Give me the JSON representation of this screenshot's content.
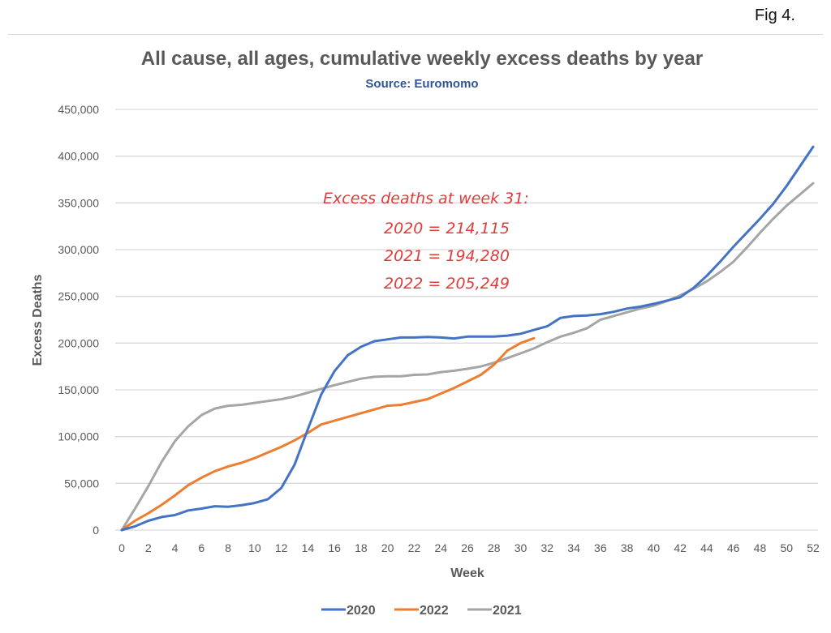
{
  "figure": {
    "label": "Fig 4."
  },
  "chart_data": {
    "type": "line",
    "title": "All cause, all ages, cumulative weekly excess deaths by year",
    "subtitle": "Source: Euromomo",
    "xlabel": "Week",
    "ylabel": "Excess Deaths",
    "xlim": [
      0,
      52
    ],
    "ylim": [
      0,
      450000
    ],
    "x_ticks": [
      0,
      2,
      4,
      6,
      8,
      10,
      12,
      14,
      16,
      18,
      20,
      22,
      24,
      26,
      28,
      30,
      32,
      34,
      36,
      38,
      40,
      42,
      44,
      46,
      48,
      50,
      52
    ],
    "y_ticks": [
      0,
      50000,
      100000,
      150000,
      200000,
      250000,
      300000,
      350000,
      400000,
      450000
    ],
    "y_tick_labels": [
      "0",
      "50,000",
      "100,000",
      "150,000",
      "200,000",
      "250,000",
      "300,000",
      "350,000",
      "400,000",
      "450,000"
    ],
    "grid": "horizontal",
    "legend_position": "bottom",
    "series": [
      {
        "name": "2020",
        "color": "#4472c4",
        "x": [
          0,
          1,
          2,
          3,
          4,
          5,
          6,
          7,
          8,
          9,
          10,
          11,
          12,
          13,
          14,
          15,
          16,
          17,
          18,
          19,
          20,
          21,
          22,
          23,
          24,
          25,
          26,
          27,
          28,
          29,
          30,
          31,
          32,
          33,
          34,
          35,
          36,
          37,
          38,
          39,
          40,
          41,
          42,
          43,
          44,
          45,
          46,
          47,
          48,
          49,
          50,
          51,
          52
        ],
        "values": [
          0,
          4000,
          10000,
          14000,
          16000,
          21000,
          23000,
          25500,
          25000,
          26500,
          29000,
          33000,
          45000,
          70000,
          108000,
          145000,
          170000,
          187000,
          196000,
          202000,
          204000,
          206000,
          206000,
          206500,
          206000,
          205000,
          207000,
          207000,
          207000,
          208000,
          210000,
          214115,
          218000,
          227000,
          229000,
          229500,
          231000,
          233500,
          237000,
          239000,
          242000,
          245500,
          249000,
          259000,
          272000,
          287000,
          303000,
          318000,
          333000,
          349000,
          368000,
          389000,
          410000
        ]
      },
      {
        "name": "2022",
        "color": "#ed7d31",
        "x": [
          0,
          1,
          2,
          3,
          4,
          5,
          6,
          7,
          8,
          9,
          10,
          11,
          12,
          13,
          14,
          15,
          16,
          17,
          18,
          19,
          20,
          21,
          22,
          23,
          24,
          25,
          26,
          27,
          28,
          29,
          30,
          31
        ],
        "values": [
          0,
          10000,
          18000,
          27000,
          37000,
          48000,
          56000,
          63000,
          68000,
          72000,
          77000,
          83000,
          89000,
          96000,
          104000,
          113000,
          117000,
          121000,
          125000,
          129000,
          133000,
          134000,
          137000,
          140000,
          146000,
          152000,
          159000,
          166000,
          177000,
          192000,
          200000,
          205249
        ]
      },
      {
        "name": "2021",
        "color": "#a5a5a5",
        "x": [
          0,
          1,
          2,
          3,
          4,
          5,
          6,
          7,
          8,
          9,
          10,
          11,
          12,
          13,
          14,
          15,
          16,
          17,
          18,
          19,
          20,
          21,
          22,
          23,
          24,
          25,
          26,
          27,
          28,
          29,
          30,
          31,
          32,
          33,
          34,
          35,
          36,
          37,
          38,
          39,
          40,
          41,
          42,
          43,
          44,
          45,
          46,
          47,
          48,
          49,
          50,
          51,
          52
        ],
        "values": [
          0,
          23000,
          47000,
          73000,
          95000,
          111000,
          123000,
          130000,
          133000,
          134000,
          136000,
          138000,
          140000,
          143000,
          147000,
          151000,
          155000,
          158500,
          162000,
          164000,
          164500,
          164500,
          166000,
          166500,
          169000,
          170500,
          172500,
          175000,
          179000,
          184000,
          189000,
          194280,
          201000,
          207000,
          211000,
          216000,
          225000,
          229000,
          233000,
          237000,
          240000,
          245000,
          251000,
          258000,
          266000,
          276000,
          287000,
          302000,
          318000,
          333000,
          347000,
          359000,
          371000
        ]
      }
    ],
    "legend": [
      "2020",
      "2022",
      "2021"
    ],
    "annotation": {
      "color": "#e03c3c",
      "lines": [
        "Excess deaths at week 31:",
        "2020 = 214,115",
        "2021 = 194,280",
        "2022 = 205,249"
      ]
    }
  }
}
